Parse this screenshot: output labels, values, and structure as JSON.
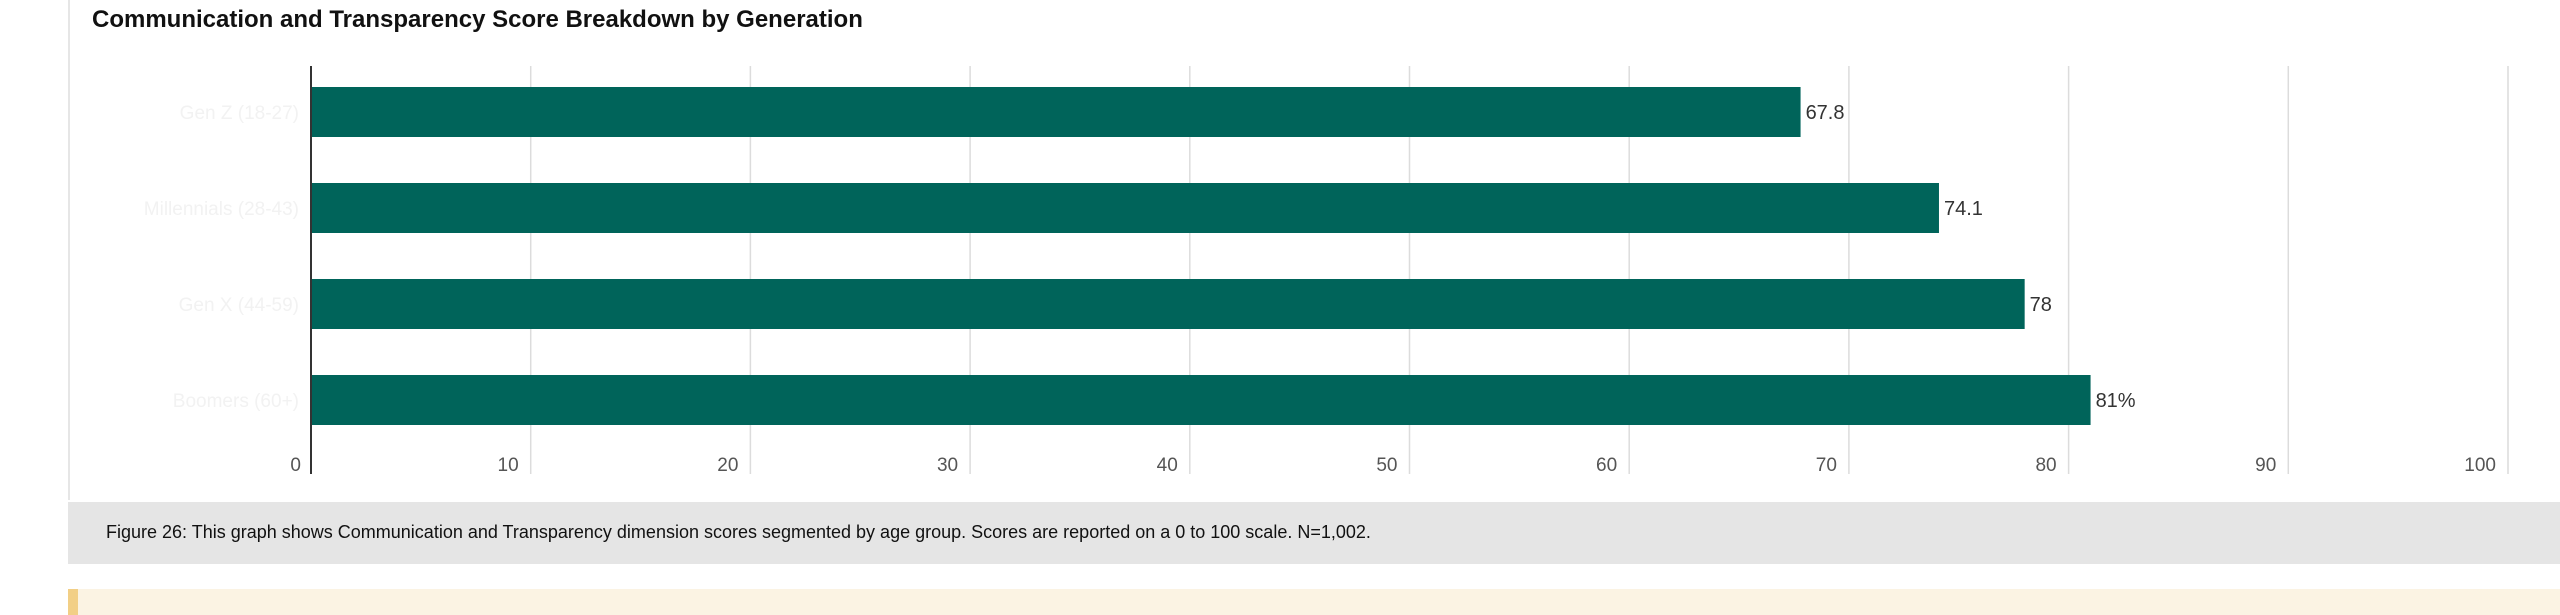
{
  "chart_data": {
    "type": "bar",
    "orientation": "horizontal",
    "title": "Communication and Transparency Score Breakdown by Generation",
    "categories": [
      "Gen Z (18-27)",
      "Millennials (28-43)",
      "Gen X (44-59)",
      "Boomers (60+)"
    ],
    "values": [
      67.8,
      74.1,
      78,
      81
    ],
    "value_labels": [
      "67.8",
      "74.1",
      "78",
      "81%"
    ],
    "xlim": [
      0,
      100
    ],
    "x_ticks": [
      0,
      10,
      20,
      30,
      40,
      50,
      60,
      70,
      80,
      90,
      100
    ],
    "grid": true,
    "bar_color": "#00645a"
  },
  "caption": "Figure 26: This graph shows Communication and Transparency dimension scores segmented by age group. Scores are reported on a 0 to 100 scale. N=1,002.",
  "colors": {
    "bar": "#00645a",
    "grid": "#dcdcdc",
    "axis": "#333333",
    "caption_bg": "#e5e5e5",
    "callout_bg": "#fbf3e3",
    "callout_accent": "#f2cf86"
  }
}
